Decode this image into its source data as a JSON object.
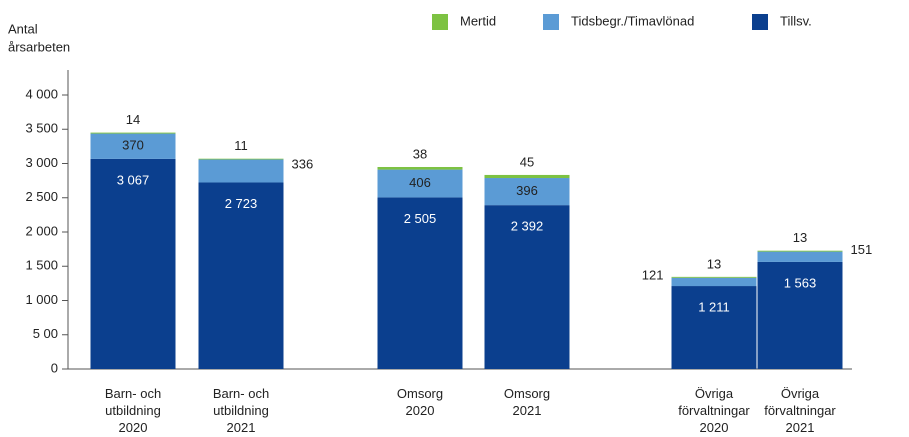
{
  "chart_data": {
    "type": "stacked_bar",
    "y_label": [
      "Antal",
      "årsarbeten"
    ],
    "categories": [
      [
        "Barn- och",
        "utbildning",
        "2020"
      ],
      [
        "Barn- och",
        "utbildning",
        "2021"
      ],
      [
        "Omsorg",
        "2020"
      ],
      [
        "Omsorg",
        "2021"
      ],
      [
        "Övriga",
        "förvaltningar",
        "2020"
      ],
      [
        "Övriga",
        "förvaltningar",
        "2021"
      ]
    ],
    "series": [
      {
        "name": "Tillsv.",
        "color": "#0b3f8e",
        "values": [
          3067,
          2723,
          2505,
          2392,
          1211,
          1563
        ],
        "value_labels": [
          "3 067",
          "2 723",
          "2 505",
          "2 392",
          "1 211",
          "1 563"
        ]
      },
      {
        "name": "Tidsbegr./Timavlönad",
        "color": "#5b9bd5",
        "values": [
          370,
          336,
          406,
          396,
          121,
          151
        ]
      },
      {
        "name": "Mertid",
        "color": "#7dc242",
        "values": [
          14,
          11,
          38,
          45,
          13,
          13
        ]
      }
    ],
    "ylim": [
      0,
      4000
    ],
    "yticks": [
      0,
      {
        "value": 500,
        "label": "5 00"
      },
      {
        "value": 1000,
        "label": "1 000"
      },
      {
        "value": 1500,
        "label": "1 500"
      },
      {
        "value": 2000,
        "label": "2 000"
      },
      {
        "value": 2500,
        "label": "2 500"
      },
      {
        "value": 3000,
        "label": "3 000"
      },
      {
        "value": 3500,
        "label": "3 500"
      },
      {
        "value": 4000,
        "label": "4 000"
      }
    ],
    "grid": false
  }
}
